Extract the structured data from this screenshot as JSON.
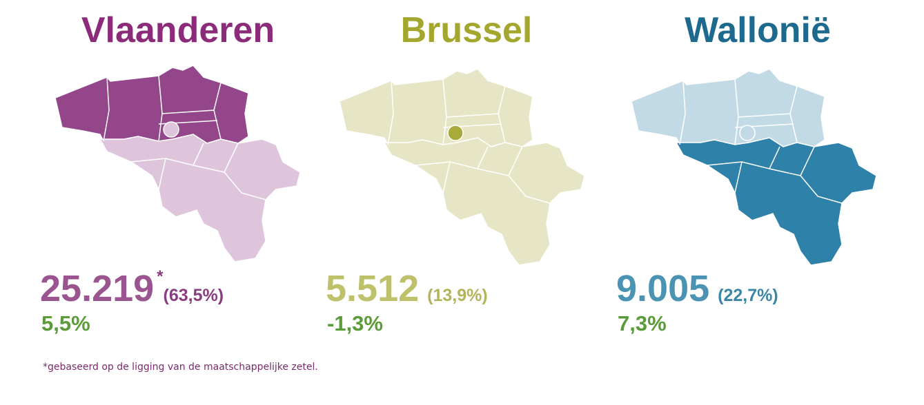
{
  "panels": [
    {
      "title": "Vlaanderen",
      "value": "25.219",
      "marker": "*",
      "share": "(63,5%)",
      "change": "5,5%"
    },
    {
      "title": "Brussel",
      "value": "5.512",
      "share": "(13,9%)",
      "change": "-1,3%"
    },
    {
      "title": "Wallonië",
      "value": "9.005",
      "share": "(22,7%)",
      "change": "7,3%"
    }
  ],
  "footnote": "*gebaseerd op de ligging van de maatschappelijke zetel."
}
